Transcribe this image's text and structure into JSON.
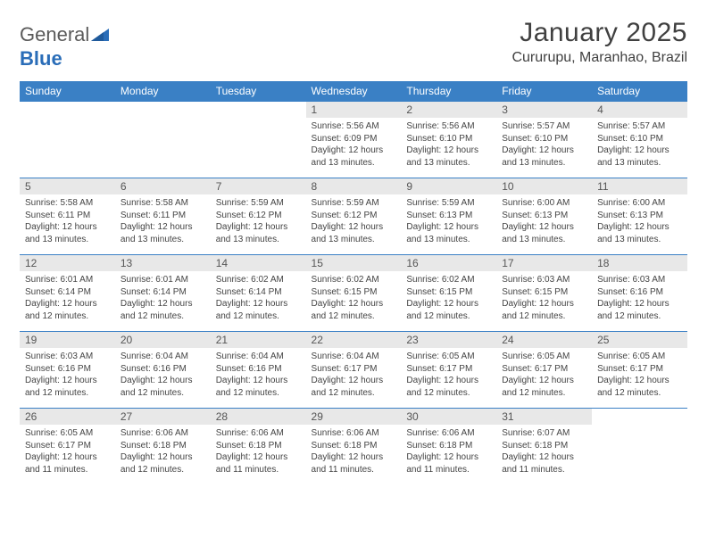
{
  "logo": {
    "text_general": "General",
    "text_blue": "Blue"
  },
  "title": "January 2025",
  "location": "Cururupu, Maranhao, Brazil",
  "colors": {
    "header_bg": "#3a80c5",
    "header_text": "#ffffff",
    "row_border": "#3a80c5",
    "daynum_bg": "#e8e8e8",
    "body_text": "#444444",
    "logo_gray": "#5a5a5a",
    "logo_blue": "#2a6db8",
    "page_bg": "#ffffff"
  },
  "typography": {
    "title_fontsize": 30,
    "location_fontsize": 16,
    "weekday_fontsize": 12,
    "daynum_fontsize": 12,
    "body_fontsize": 10
  },
  "weekdays": [
    "Sunday",
    "Monday",
    "Tuesday",
    "Wednesday",
    "Thursday",
    "Friday",
    "Saturday"
  ],
  "weeks": [
    [
      {
        "n": "",
        "lines": [
          "",
          "",
          "",
          ""
        ]
      },
      {
        "n": "",
        "lines": [
          "",
          "",
          "",
          ""
        ]
      },
      {
        "n": "",
        "lines": [
          "",
          "",
          "",
          ""
        ]
      },
      {
        "n": "1",
        "lines": [
          "Sunrise: 5:56 AM",
          "Sunset: 6:09 PM",
          "Daylight: 12 hours",
          "and 13 minutes."
        ]
      },
      {
        "n": "2",
        "lines": [
          "Sunrise: 5:56 AM",
          "Sunset: 6:10 PM",
          "Daylight: 12 hours",
          "and 13 minutes."
        ]
      },
      {
        "n": "3",
        "lines": [
          "Sunrise: 5:57 AM",
          "Sunset: 6:10 PM",
          "Daylight: 12 hours",
          "and 13 minutes."
        ]
      },
      {
        "n": "4",
        "lines": [
          "Sunrise: 5:57 AM",
          "Sunset: 6:10 PM",
          "Daylight: 12 hours",
          "and 13 minutes."
        ]
      }
    ],
    [
      {
        "n": "5",
        "lines": [
          "Sunrise: 5:58 AM",
          "Sunset: 6:11 PM",
          "Daylight: 12 hours",
          "and 13 minutes."
        ]
      },
      {
        "n": "6",
        "lines": [
          "Sunrise: 5:58 AM",
          "Sunset: 6:11 PM",
          "Daylight: 12 hours",
          "and 13 minutes."
        ]
      },
      {
        "n": "7",
        "lines": [
          "Sunrise: 5:59 AM",
          "Sunset: 6:12 PM",
          "Daylight: 12 hours",
          "and 13 minutes."
        ]
      },
      {
        "n": "8",
        "lines": [
          "Sunrise: 5:59 AM",
          "Sunset: 6:12 PM",
          "Daylight: 12 hours",
          "and 13 minutes."
        ]
      },
      {
        "n": "9",
        "lines": [
          "Sunrise: 5:59 AM",
          "Sunset: 6:13 PM",
          "Daylight: 12 hours",
          "and 13 minutes."
        ]
      },
      {
        "n": "10",
        "lines": [
          "Sunrise: 6:00 AM",
          "Sunset: 6:13 PM",
          "Daylight: 12 hours",
          "and 13 minutes."
        ]
      },
      {
        "n": "11",
        "lines": [
          "Sunrise: 6:00 AM",
          "Sunset: 6:13 PM",
          "Daylight: 12 hours",
          "and 13 minutes."
        ]
      }
    ],
    [
      {
        "n": "12",
        "lines": [
          "Sunrise: 6:01 AM",
          "Sunset: 6:14 PM",
          "Daylight: 12 hours",
          "and 12 minutes."
        ]
      },
      {
        "n": "13",
        "lines": [
          "Sunrise: 6:01 AM",
          "Sunset: 6:14 PM",
          "Daylight: 12 hours",
          "and 12 minutes."
        ]
      },
      {
        "n": "14",
        "lines": [
          "Sunrise: 6:02 AM",
          "Sunset: 6:14 PM",
          "Daylight: 12 hours",
          "and 12 minutes."
        ]
      },
      {
        "n": "15",
        "lines": [
          "Sunrise: 6:02 AM",
          "Sunset: 6:15 PM",
          "Daylight: 12 hours",
          "and 12 minutes."
        ]
      },
      {
        "n": "16",
        "lines": [
          "Sunrise: 6:02 AM",
          "Sunset: 6:15 PM",
          "Daylight: 12 hours",
          "and 12 minutes."
        ]
      },
      {
        "n": "17",
        "lines": [
          "Sunrise: 6:03 AM",
          "Sunset: 6:15 PM",
          "Daylight: 12 hours",
          "and 12 minutes."
        ]
      },
      {
        "n": "18",
        "lines": [
          "Sunrise: 6:03 AM",
          "Sunset: 6:16 PM",
          "Daylight: 12 hours",
          "and 12 minutes."
        ]
      }
    ],
    [
      {
        "n": "19",
        "lines": [
          "Sunrise: 6:03 AM",
          "Sunset: 6:16 PM",
          "Daylight: 12 hours",
          "and 12 minutes."
        ]
      },
      {
        "n": "20",
        "lines": [
          "Sunrise: 6:04 AM",
          "Sunset: 6:16 PM",
          "Daylight: 12 hours",
          "and 12 minutes."
        ]
      },
      {
        "n": "21",
        "lines": [
          "Sunrise: 6:04 AM",
          "Sunset: 6:16 PM",
          "Daylight: 12 hours",
          "and 12 minutes."
        ]
      },
      {
        "n": "22",
        "lines": [
          "Sunrise: 6:04 AM",
          "Sunset: 6:17 PM",
          "Daylight: 12 hours",
          "and 12 minutes."
        ]
      },
      {
        "n": "23",
        "lines": [
          "Sunrise: 6:05 AM",
          "Sunset: 6:17 PM",
          "Daylight: 12 hours",
          "and 12 minutes."
        ]
      },
      {
        "n": "24",
        "lines": [
          "Sunrise: 6:05 AM",
          "Sunset: 6:17 PM",
          "Daylight: 12 hours",
          "and 12 minutes."
        ]
      },
      {
        "n": "25",
        "lines": [
          "Sunrise: 6:05 AM",
          "Sunset: 6:17 PM",
          "Daylight: 12 hours",
          "and 12 minutes."
        ]
      }
    ],
    [
      {
        "n": "26",
        "lines": [
          "Sunrise: 6:05 AM",
          "Sunset: 6:17 PM",
          "Daylight: 12 hours",
          "and 11 minutes."
        ]
      },
      {
        "n": "27",
        "lines": [
          "Sunrise: 6:06 AM",
          "Sunset: 6:18 PM",
          "Daylight: 12 hours",
          "and 12 minutes."
        ]
      },
      {
        "n": "28",
        "lines": [
          "Sunrise: 6:06 AM",
          "Sunset: 6:18 PM",
          "Daylight: 12 hours",
          "and 11 minutes."
        ]
      },
      {
        "n": "29",
        "lines": [
          "Sunrise: 6:06 AM",
          "Sunset: 6:18 PM",
          "Daylight: 12 hours",
          "and 11 minutes."
        ]
      },
      {
        "n": "30",
        "lines": [
          "Sunrise: 6:06 AM",
          "Sunset: 6:18 PM",
          "Daylight: 12 hours",
          "and 11 minutes."
        ]
      },
      {
        "n": "31",
        "lines": [
          "Sunrise: 6:07 AM",
          "Sunset: 6:18 PM",
          "Daylight: 12 hours",
          "and 11 minutes."
        ]
      },
      {
        "n": "",
        "lines": [
          "",
          "",
          "",
          ""
        ]
      }
    ]
  ]
}
